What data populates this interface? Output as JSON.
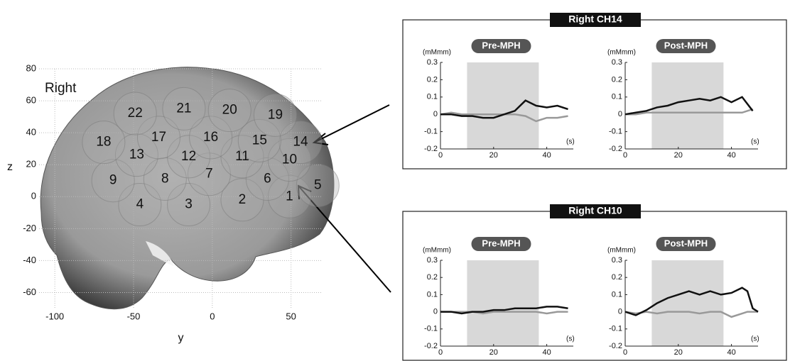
{
  "panels": [
    {
      "title": "Right CH14"
    },
    {
      "title": "Right CH10"
    }
  ],
  "chart_data": [
    {
      "type": "brain-map",
      "label": "Right",
      "xlabel": "y",
      "ylabel": "z",
      "xlim": [
        -110,
        70
      ],
      "ylim": [
        -70,
        80
      ],
      "xticks": [
        -100,
        -50,
        0,
        50
      ],
      "yticks": [
        -60,
        -40,
        -20,
        0,
        20,
        40,
        60,
        80
      ],
      "grid": true,
      "channels": [
        {
          "label": "1",
          "y": 49,
          "z": 0
        },
        {
          "label": "2",
          "y": 19,
          "z": -2
        },
        {
          "label": "3",
          "y": -15,
          "z": -5
        },
        {
          "label": "4",
          "y": -46,
          "z": -5
        },
        {
          "label": "5",
          "y": 67,
          "z": 7
        },
        {
          "label": "6",
          "y": 35,
          "z": 11
        },
        {
          "label": "7",
          "y": -2,
          "z": 14
        },
        {
          "label": "8",
          "y": -30,
          "z": 11
        },
        {
          "label": "9",
          "y": -63,
          "z": 10
        },
        {
          "label": "10",
          "y": 49,
          "z": 23
        },
        {
          "label": "11",
          "y": 19,
          "z": 25
        },
        {
          "label": "12",
          "y": -15,
          "z": 25
        },
        {
          "label": "13",
          "y": -48,
          "z": 26
        },
        {
          "label": "14",
          "y": 56,
          "z": 34
        },
        {
          "label": "15",
          "y": 30,
          "z": 35
        },
        {
          "label": "16",
          "y": -1,
          "z": 37
        },
        {
          "label": "17",
          "y": -34,
          "z": 37
        },
        {
          "label": "18",
          "y": -69,
          "z": 34
        },
        {
          "label": "19",
          "y": 40,
          "z": 51
        },
        {
          "label": "20",
          "y": 11,
          "z": 54
        },
        {
          "label": "21",
          "y": -18,
          "z": 55
        },
        {
          "label": "22",
          "y": -49,
          "z": 52
        }
      ]
    },
    {
      "type": "line",
      "title": "Pre-MPH",
      "ylabel": "(mMmm)",
      "xlabel": "(s)",
      "xlim": [
        0,
        50
      ],
      "ylim": [
        -0.2,
        0.3
      ],
      "xticks": [
        0,
        20,
        40
      ],
      "yticks": [
        -0.2,
        -0.1,
        0,
        0.1,
        0.2,
        0.3
      ],
      "shade": [
        10,
        37
      ],
      "x": [
        0,
        4,
        8,
        12,
        16,
        20,
        24,
        28,
        32,
        36,
        40,
        44,
        48
      ],
      "series": [
        {
          "color": "#111111",
          "values": [
            0,
            0,
            -0.01,
            -0.01,
            -0.02,
            -0.02,
            0,
            0.02,
            0.08,
            0.05,
            0.04,
            0.05,
            0.03
          ]
        },
        {
          "color": "#999999",
          "values": [
            0,
            0.01,
            0,
            0,
            0,
            0,
            0,
            0,
            -0.01,
            -0.04,
            -0.02,
            -0.02,
            -0.01
          ]
        }
      ]
    },
    {
      "type": "line",
      "title": "Post-MPH",
      "ylabel": "(mMmm)",
      "xlabel": "(s)",
      "xlim": [
        0,
        50
      ],
      "ylim": [
        -0.2,
        0.3
      ],
      "xticks": [
        0,
        20,
        40
      ],
      "yticks": [
        -0.2,
        -0.1,
        0,
        0.1,
        0.2,
        0.3
      ],
      "shade": [
        10,
        37
      ],
      "x": [
        0,
        4,
        8,
        12,
        16,
        20,
        24,
        28,
        32,
        36,
        40,
        44,
        48
      ],
      "series": [
        {
          "color": "#111111",
          "values": [
            0,
            0.01,
            0.02,
            0.04,
            0.05,
            0.07,
            0.08,
            0.09,
            0.08,
            0.1,
            0.07,
            0.1,
            0.02
          ]
        },
        {
          "color": "#999999",
          "values": [
            0,
            0,
            0.01,
            0.01,
            0.01,
            0.01,
            0.01,
            0.01,
            0.01,
            0.01,
            0.01,
            0.01,
            0.03
          ]
        }
      ]
    },
    {
      "type": "line",
      "title": "Pre-MPH",
      "ylabel": "(mMmm)",
      "xlabel": "(s)",
      "xlim": [
        0,
        50
      ],
      "ylim": [
        -0.2,
        0.3
      ],
      "xticks": [
        0,
        20,
        40
      ],
      "yticks": [
        -0.2,
        -0.1,
        0,
        0.1,
        0.2,
        0.3
      ],
      "shade": [
        10,
        37
      ],
      "x": [
        0,
        4,
        8,
        12,
        16,
        20,
        24,
        28,
        32,
        36,
        40,
        44,
        48
      ],
      "series": [
        {
          "color": "#111111",
          "values": [
            0,
            0,
            -0.01,
            0,
            0,
            0.01,
            0.01,
            0.02,
            0.02,
            0.02,
            0.03,
            0.03,
            0.02
          ]
        },
        {
          "color": "#999999",
          "values": [
            0,
            0,
            0,
            0,
            -0.01,
            0,
            0,
            0,
            0,
            0,
            -0.01,
            0,
            0
          ]
        }
      ]
    },
    {
      "type": "line",
      "title": "Post-MPH",
      "ylabel": "(mMmm)",
      "xlabel": "(s)",
      "xlim": [
        0,
        50
      ],
      "ylim": [
        -0.2,
        0.3
      ],
      "xticks": [
        0,
        20,
        40
      ],
      "yticks": [
        -0.2,
        -0.1,
        0,
        0.1,
        0.2,
        0.3
      ],
      "shade": [
        10,
        37
      ],
      "x": [
        0,
        4,
        8,
        12,
        16,
        20,
        24,
        28,
        32,
        36,
        40,
        44,
        46,
        48,
        50
      ],
      "series": [
        {
          "color": "#111111",
          "values": [
            0,
            -0.02,
            0.01,
            0.05,
            0.08,
            0.1,
            0.12,
            0.1,
            0.12,
            0.1,
            0.11,
            0.14,
            0.12,
            0.02,
            0
          ]
        },
        {
          "color": "#999999",
          "values": [
            0,
            -0.01,
            0,
            -0.01,
            0,
            0,
            0,
            -0.01,
            0,
            0,
            -0.03,
            -0.01,
            0,
            0,
            0
          ]
        }
      ]
    }
  ]
}
